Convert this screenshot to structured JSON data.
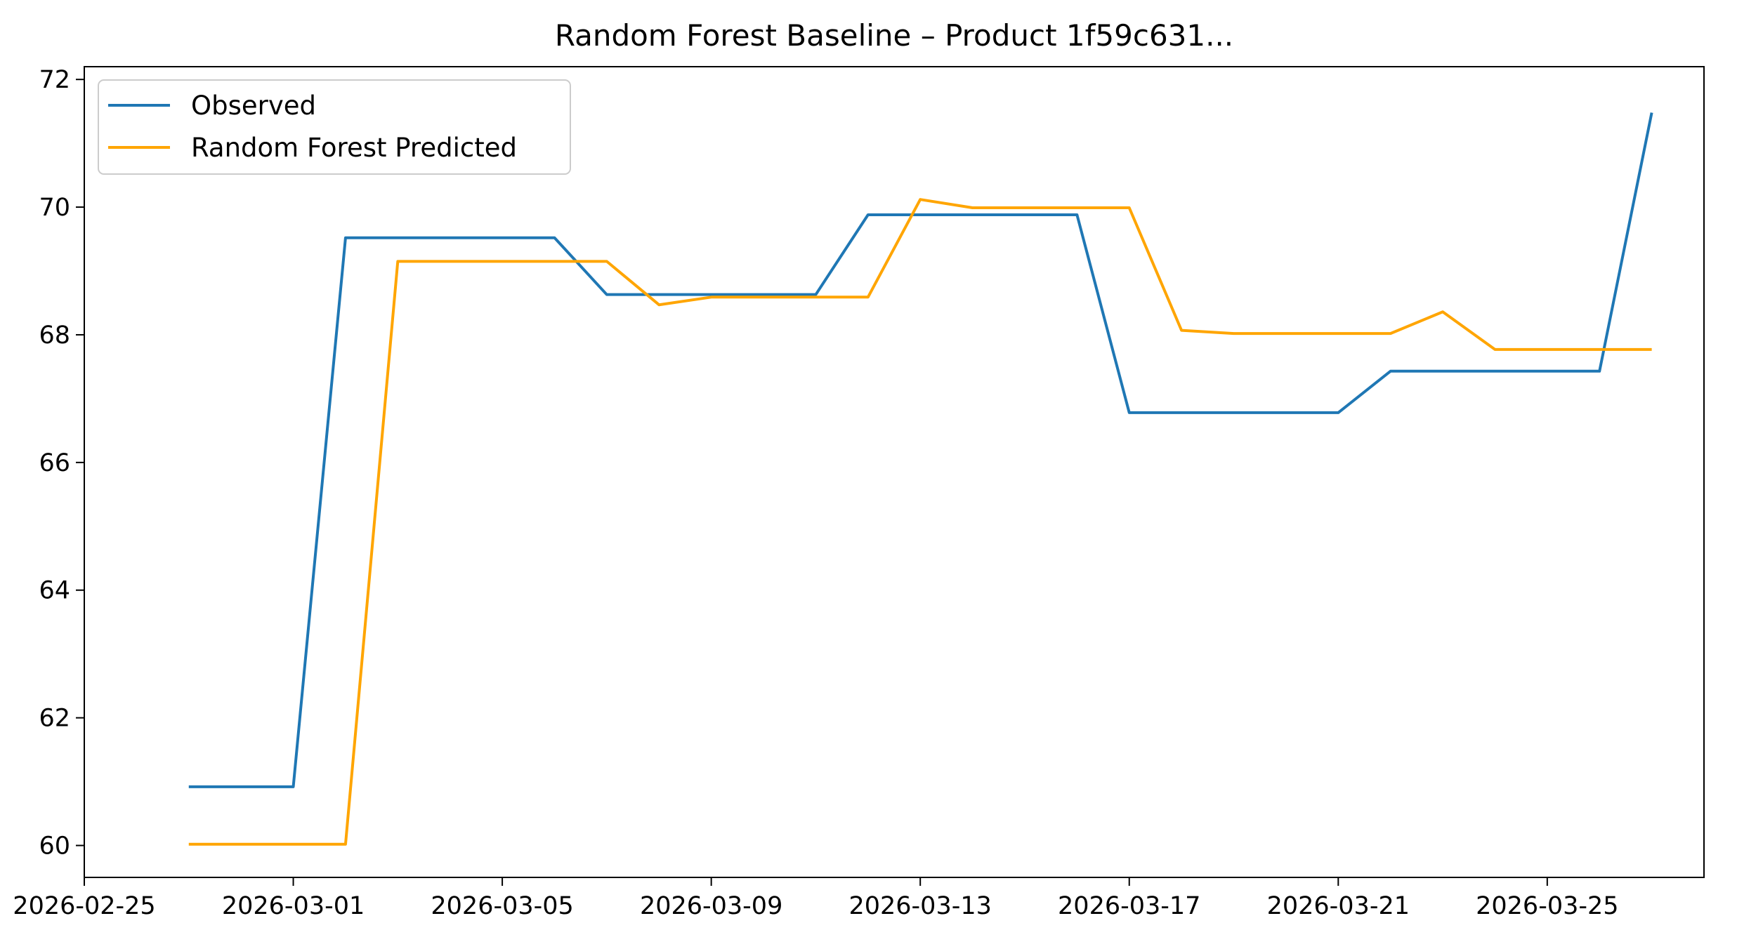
{
  "chart_data": {
    "type": "line",
    "title": "Random Forest Baseline – Product 1f59c631...",
    "xlabel": "",
    "ylabel": "",
    "x": [
      "2026-02-27",
      "2026-02-28",
      "2026-03-01",
      "2026-03-02",
      "2026-03-03",
      "2026-03-04",
      "2026-03-05",
      "2026-03-06",
      "2026-03-07",
      "2026-03-08",
      "2026-03-09",
      "2026-03-10",
      "2026-03-11",
      "2026-03-12",
      "2026-03-13",
      "2026-03-14",
      "2026-03-15",
      "2026-03-16",
      "2026-03-17",
      "2026-03-18",
      "2026-03-19",
      "2026-03-20",
      "2026-03-21",
      "2026-03-22",
      "2026-03-23",
      "2026-03-24",
      "2026-03-25",
      "2026-03-26",
      "2026-03-27"
    ],
    "xlim": [
      "2026-02-25",
      "2026-03-28"
    ],
    "x_ticks": [
      "2026-02-25",
      "2026-03-01",
      "2026-03-05",
      "2026-03-09",
      "2026-03-13",
      "2026-03-17",
      "2026-03-21",
      "2026-03-25"
    ],
    "ylim": [
      59.5,
      72.2
    ],
    "y_ticks": [
      60,
      62,
      64,
      66,
      68,
      70,
      72
    ],
    "grid": false,
    "legend_position": "top-left",
    "series": [
      {
        "name": "Observed",
        "color": "#1f77b4",
        "values": [
          60.92,
          60.92,
          60.92,
          69.52,
          69.52,
          69.52,
          69.52,
          69.52,
          68.63,
          68.63,
          68.63,
          68.63,
          68.63,
          69.88,
          69.88,
          69.88,
          69.88,
          69.88,
          66.78,
          66.78,
          66.78,
          66.78,
          66.78,
          67.43,
          67.43,
          67.43,
          67.43,
          67.43,
          71.48
        ]
      },
      {
        "name": "Random Forest Predicted",
        "color": "#ffa500",
        "values": [
          60.02,
          60.02,
          60.02,
          60.02,
          69.15,
          69.15,
          69.15,
          69.15,
          69.15,
          68.47,
          68.59,
          68.59,
          68.59,
          68.59,
          70.12,
          69.99,
          69.99,
          69.99,
          69.99,
          68.07,
          68.02,
          68.02,
          68.02,
          68.02,
          68.36,
          67.77,
          67.77,
          67.77,
          67.77
        ]
      }
    ]
  }
}
